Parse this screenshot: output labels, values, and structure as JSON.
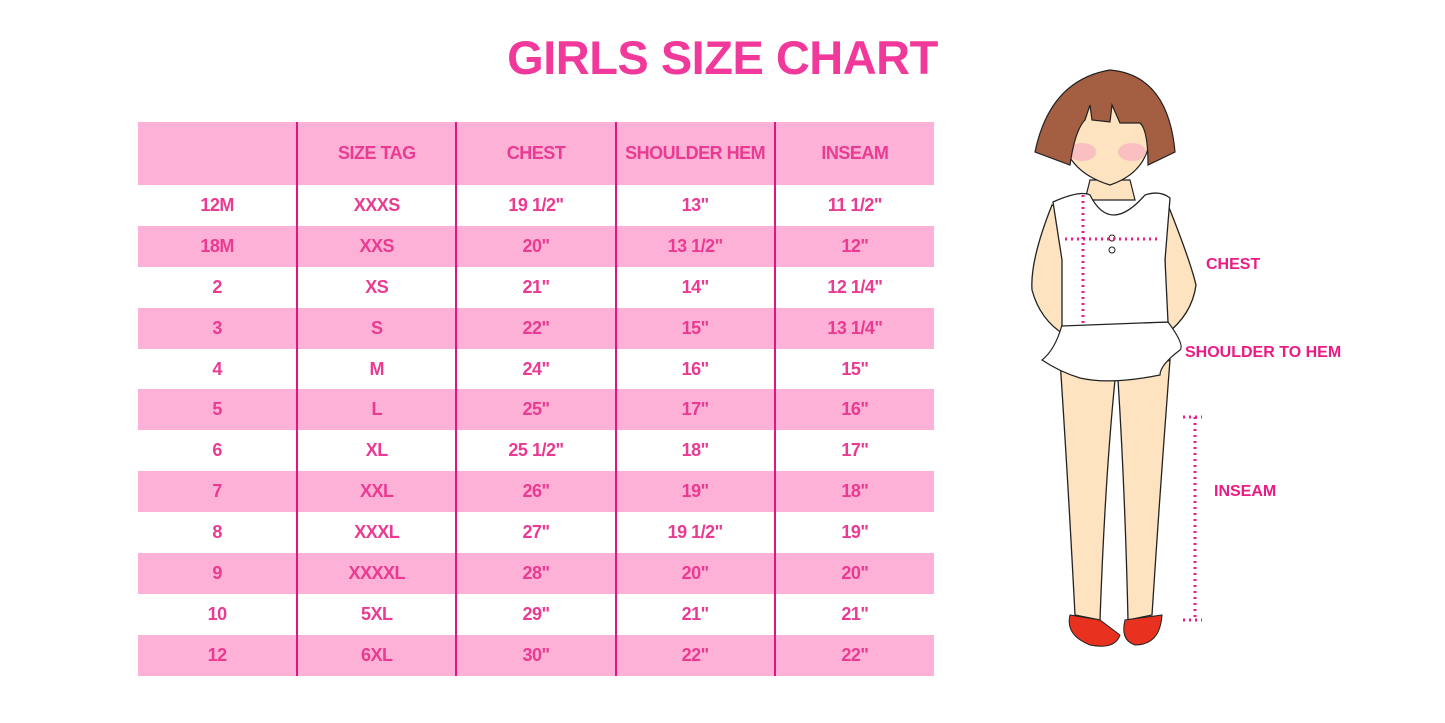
{
  "title": "GIRLS SIZE CHART",
  "table": {
    "headers": [
      "",
      "SIZE TAG",
      "CHEST",
      "SHOULDER HEM",
      "INSEAM"
    ],
    "rows": [
      [
        "12M",
        "XXXS",
        "19 1/2\"",
        "13\"",
        "11 1/2\""
      ],
      [
        "18M",
        "XXS",
        "20\"",
        "13 1/2\"",
        "12\""
      ],
      [
        "2",
        "XS",
        "21\"",
        "14\"",
        "12 1/4\""
      ],
      [
        "3",
        "S",
        "22\"",
        "15\"",
        "13 1/4\""
      ],
      [
        "4",
        "M",
        "24\"",
        "16\"",
        "15\""
      ],
      [
        "5",
        "L",
        "25\"",
        "17\"",
        "16\""
      ],
      [
        "6",
        "XL",
        "25 1/2\"",
        "18\"",
        "17\""
      ],
      [
        "7",
        "XXL",
        "26\"",
        "19\"",
        "18\""
      ],
      [
        "8",
        "XXXL",
        "27\"",
        "19 1/2\"",
        "19\""
      ],
      [
        "9",
        "XXXXL",
        "28\"",
        "20\"",
        "20\""
      ],
      [
        "10",
        "5XL",
        "29\"",
        "21\"",
        "21\""
      ],
      [
        "12",
        "6XL",
        "30\"",
        "22\"",
        "22\""
      ]
    ]
  },
  "figure": {
    "labels": {
      "chest": "CHEST",
      "shoulder_to_hem": "SHOULDER TO HEM",
      "inseam": "INSEAM"
    }
  },
  "colors": {
    "title": "#f0399a",
    "row_pink": "#fdb1d6",
    "divider": "#e0157f",
    "measure": "#ec1b84"
  }
}
